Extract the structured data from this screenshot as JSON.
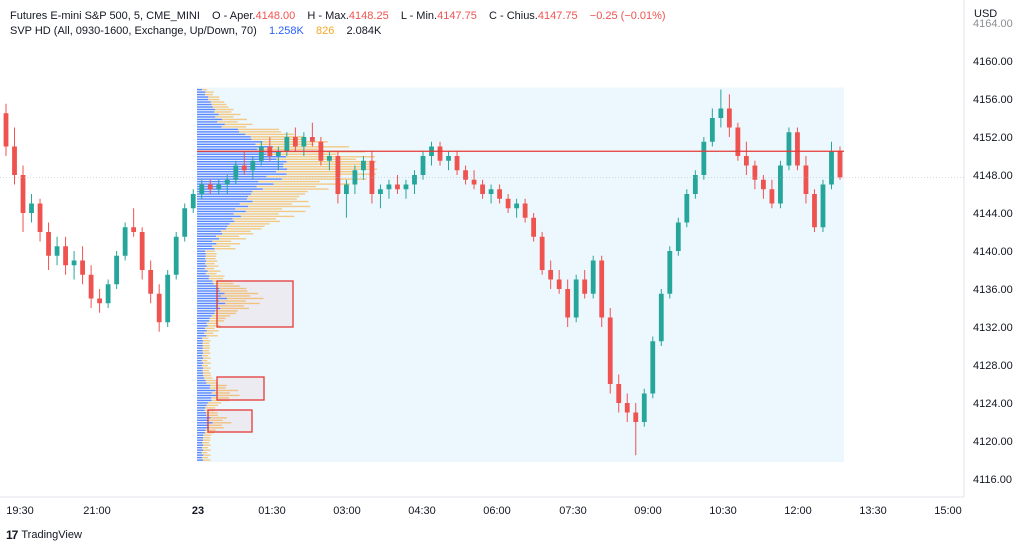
{
  "header": {
    "line1": {
      "symbol": "Futures E-mini S&P 500, 5, CME_MINI",
      "open_label": "O - Aper.",
      "open_value": "4148.00",
      "high_label": "H - Max.",
      "high_value": "4148.25",
      "low_label": "L - Min.",
      "low_value": "4147.75",
      "close_label": "C - Chius.",
      "close_value": "4147.75",
      "change": "−0.25 (−0.01%)"
    },
    "line2": {
      "indicator": "SVP HD (All, 0930-1600, Exchange, Up/Down, 70)",
      "up_volume": "1.258K",
      "down_volume": "826",
      "total_volume": "2.084K"
    }
  },
  "branding": {
    "logo_text": "TradingView"
  },
  "colors": {
    "up": "#26a69a",
    "down": "#ef5350",
    "profile_up": "#2962ff",
    "profile_down": "#f5a623",
    "profile_bg": "#e3f2fd",
    "poc": "#e53935",
    "box": "#e53935",
    "grid": "#f0f3fa",
    "axis_text": "#131722"
  },
  "chart_data": {
    "type": "candlestick",
    "currency": "USD",
    "y_axis": {
      "ticks": [
        4116,
        4120,
        4124,
        4128,
        4132,
        4136,
        4140,
        4144,
        4148,
        4152,
        4156,
        4160
      ],
      "ylim": [
        4114,
        4167
      ]
    },
    "x_axis": {
      "ticks": [
        "19:30",
        "21:00",
        "23",
        "01:30",
        "03:00",
        "04:30",
        "06:00",
        "07:30",
        "09:00",
        "10:30",
        "12:00",
        "13:30",
        "15:00"
      ]
    },
    "last_price": 4147.75,
    "poc_price": 4150.5,
    "volume_profile_range": [
      4118,
      4157
    ],
    "candles": [
      [
        4154.5,
        4155.5,
        4150.0,
        4151.0
      ],
      [
        4151.0,
        4153.0,
        4147.0,
        4148.0
      ],
      [
        4148.0,
        4149.0,
        4142.0,
        4144.0
      ],
      [
        4144.0,
        4146.0,
        4143.0,
        4145.0
      ],
      [
        4145.0,
        4145.5,
        4141.0,
        4142.0
      ],
      [
        4142.0,
        4143.0,
        4138.0,
        4139.5
      ],
      [
        4139.5,
        4141.5,
        4138.5,
        4140.5
      ],
      [
        4140.5,
        4141.5,
        4137.5,
        4138.5
      ],
      [
        4138.5,
        4140.0,
        4137.0,
        4139.0
      ],
      [
        4139.0,
        4140.5,
        4136.5,
        4137.5
      ],
      [
        4137.5,
        4138.5,
        4134.0,
        4135.0
      ],
      [
        4135.0,
        4136.0,
        4133.5,
        4134.5
      ],
      [
        4134.5,
        4137.0,
        4134.0,
        4136.5
      ],
      [
        4136.5,
        4140.0,
        4136.0,
        4139.5
      ],
      [
        4139.5,
        4143.0,
        4139.0,
        4142.5
      ],
      [
        4142.5,
        4144.5,
        4141.5,
        4142.0
      ],
      [
        4142.0,
        4142.5,
        4137.0,
        4138.0
      ],
      [
        4138.0,
        4139.0,
        4134.5,
        4135.5
      ],
      [
        4135.5,
        4136.5,
        4131.5,
        4132.5
      ],
      [
        4132.5,
        4138.0,
        4132.0,
        4137.5
      ],
      [
        4137.5,
        4142.0,
        4137.0,
        4141.5
      ],
      [
        4141.5,
        4145.0,
        4141.0,
        4144.5
      ],
      [
        4144.5,
        4146.5,
        4144.0,
        4146.0
      ],
      [
        4146.0,
        4147.5,
        4145.5,
        4147.0
      ],
      [
        4147.0,
        4147.5,
        4146.0,
        4146.5
      ],
      [
        4146.5,
        4147.5,
        4146.0,
        4147.0
      ],
      [
        4147.0,
        4148.0,
        4146.0,
        4147.5
      ],
      [
        4147.5,
        4149.5,
        4147.0,
        4149.0
      ],
      [
        4149.0,
        4150.5,
        4148.0,
        4148.5
      ],
      [
        4148.5,
        4150.0,
        4147.5,
        4149.5
      ],
      [
        4149.5,
        4151.5,
        4149.0,
        4151.0
      ],
      [
        4151.0,
        4152.0,
        4149.5,
        4150.0
      ],
      [
        4150.0,
        4151.0,
        4148.5,
        4150.5
      ],
      [
        4150.5,
        4152.5,
        4150.0,
        4152.0
      ],
      [
        4152.0,
        4153.0,
        4150.5,
        4151.0
      ],
      [
        4151.0,
        4152.5,
        4150.0,
        4152.0
      ],
      [
        4152.0,
        4153.5,
        4151.0,
        4151.5
      ],
      [
        4151.5,
        4152.0,
        4149.0,
        4149.5
      ],
      [
        4149.5,
        4150.5,
        4148.5,
        4150.0
      ],
      [
        4150.0,
        4150.5,
        4145.0,
        4146.0
      ],
      [
        4146.0,
        4147.5,
        4143.5,
        4147.0
      ],
      [
        4147.0,
        4149.0,
        4146.0,
        4148.5
      ],
      [
        4148.5,
        4150.0,
        4147.5,
        4149.5
      ],
      [
        4149.5,
        4150.5,
        4145.0,
        4146.0
      ],
      [
        4146.0,
        4147.0,
        4144.5,
        4146.5
      ],
      [
        4146.5,
        4147.5,
        4145.5,
        4147.0
      ],
      [
        4147.0,
        4148.0,
        4146.0,
        4146.5
      ],
      [
        4146.5,
        4147.5,
        4145.5,
        4147.0
      ],
      [
        4147.0,
        4148.5,
        4146.0,
        4148.0
      ],
      [
        4148.0,
        4150.5,
        4147.5,
        4150.0
      ],
      [
        4150.0,
        4151.5,
        4149.0,
        4151.0
      ],
      [
        4151.0,
        4151.5,
        4149.0,
        4149.5
      ],
      [
        4149.5,
        4150.5,
        4148.5,
        4150.0
      ],
      [
        4150.0,
        4150.5,
        4148.0,
        4148.5
      ],
      [
        4148.5,
        4149.0,
        4147.0,
        4147.5
      ],
      [
        4147.5,
        4148.5,
        4146.5,
        4147.0
      ],
      [
        4147.0,
        4147.5,
        4145.5,
        4146.0
      ],
      [
        4146.0,
        4147.0,
        4145.0,
        4146.5
      ],
      [
        4146.5,
        4147.0,
        4145.0,
        4145.5
      ],
      [
        4145.5,
        4146.0,
        4144.0,
        4144.5
      ],
      [
        4144.5,
        4145.5,
        4143.5,
        4145.0
      ],
      [
        4145.0,
        4145.5,
        4143.0,
        4143.5
      ],
      [
        4143.5,
        4144.0,
        4141.0,
        4141.5
      ],
      [
        4141.5,
        4142.0,
        4137.5,
        4138.0
      ],
      [
        4138.0,
        4139.0,
        4136.0,
        4137.0
      ],
      [
        4137.0,
        4138.0,
        4135.5,
        4136.0
      ],
      [
        4136.0,
        4137.0,
        4132.0,
        4133.0
      ],
      [
        4133.0,
        4137.5,
        4132.5,
        4137.0
      ],
      [
        4137.0,
        4138.0,
        4135.0,
        4135.5
      ],
      [
        4135.5,
        4139.5,
        4135.0,
        4139.0
      ],
      [
        4139.0,
        4139.5,
        4132.0,
        4133.0
      ],
      [
        4133.0,
        4134.0,
        4125.0,
        4126.0
      ],
      [
        4126.0,
        4127.0,
        4123.0,
        4124.0
      ],
      [
        4124.0,
        4125.0,
        4122.0,
        4123.0
      ],
      [
        4123.0,
        4124.0,
        4118.5,
        4122.0
      ],
      [
        4122.0,
        4125.5,
        4121.5,
        4125.0
      ],
      [
        4125.0,
        4131.0,
        4124.5,
        4130.5
      ],
      [
        4130.5,
        4136.0,
        4130.0,
        4135.5
      ],
      [
        4135.5,
        4140.5,
        4135.0,
        4140.0
      ],
      [
        4140.0,
        4143.5,
        4139.5,
        4143.0
      ],
      [
        4143.0,
        4146.5,
        4142.5,
        4146.0
      ],
      [
        4146.0,
        4148.5,
        4145.5,
        4148.0
      ],
      [
        4148.0,
        4152.0,
        4147.5,
        4151.5
      ],
      [
        4151.5,
        4155.0,
        4151.0,
        4154.0
      ],
      [
        4154.0,
        4157.0,
        4153.0,
        4155.0
      ],
      [
        4155.0,
        4156.5,
        4152.0,
        4153.0
      ],
      [
        4153.0,
        4153.5,
        4149.5,
        4150.0
      ],
      [
        4150.0,
        4151.5,
        4148.0,
        4149.0
      ],
      [
        4149.0,
        4149.5,
        4146.5,
        4147.5
      ],
      [
        4147.5,
        4148.0,
        4145.5,
        4146.5
      ],
      [
        4146.5,
        4147.5,
        4144.5,
        4145.0
      ],
      [
        4145.0,
        4149.5,
        4144.5,
        4149.0
      ],
      [
        4149.0,
        4153.0,
        4148.5,
        4152.5
      ],
      [
        4152.5,
        4153.0,
        4148.5,
        4149.0
      ],
      [
        4149.0,
        4150.0,
        4145.0,
        4146.0
      ],
      [
        4146.0,
        4146.5,
        4142.0,
        4142.5
      ],
      [
        4142.5,
        4147.5,
        4142.0,
        4147.0
      ],
      [
        4147.0,
        4151.5,
        4146.5,
        4150.5
      ],
      [
        4150.5,
        4151.0,
        4147.5,
        4147.75
      ]
    ]
  }
}
